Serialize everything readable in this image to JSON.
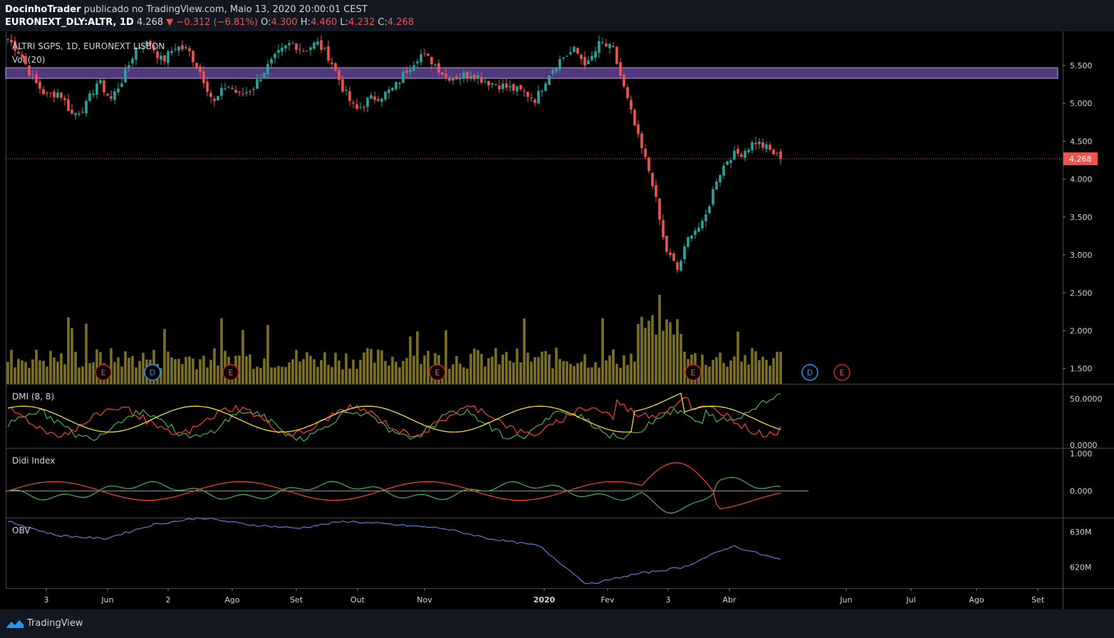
{
  "header": {
    "author": "DocinhoTrader",
    "published_text": "publicado no TradingView.com, Maio 13, 2020 20:00:01 CEST",
    "symbol_line": "EURONEXT_DLY:ALTR, 1D",
    "last": "4.268",
    "change": "▼ −0.312 (−6.81%)",
    "o_label": "O:",
    "o": "4.300",
    "h_label": "H:",
    "h": "4.460",
    "l_label": "L:",
    "l": "4.232",
    "c_label": "C:",
    "c": "4.268"
  },
  "panes": {
    "main_title": "ALTRI SGPS, 1D, EURONEXT LISBON",
    "vol_title": "Vol (20)",
    "dmi_title": "DMI (8, 8)",
    "didi_title": "Didi Index",
    "obv_title": "OBV"
  },
  "price_axis": {
    "ticks": [
      "5.500",
      "5.000",
      "4.500",
      "4.000",
      "3.500",
      "3.000",
      "2.500",
      "2.000",
      "1.500"
    ],
    "last_price_tag": "4.268"
  },
  "dmi_axis": [
    "50.0000",
    "0.0000"
  ],
  "didi_axis": [
    "1.000",
    "0.000"
  ],
  "obv_axis": [
    "630M",
    "620M"
  ],
  "time_axis": [
    "3",
    "Jun",
    "2",
    "Ago",
    "Set",
    "Out",
    "Nov",
    "2020",
    "Fev",
    "3",
    "Abr",
    "Jun",
    "Jul",
    "Ago",
    "Set"
  ],
  "events": [
    "E",
    "D",
    "E",
    "E",
    "E",
    "D",
    "E"
  ],
  "footer": {
    "brand": "TradingView"
  },
  "colors": {
    "up": "#26a69a",
    "down": "#ef5350",
    "volume": "#7b7121",
    "zone": "#7e57c2",
    "dmi_plus": "#4caf50",
    "dmi_minus": "#f44336",
    "adx": "#ffeb3b",
    "obv": "#5b7bd5"
  },
  "chart_data": {
    "type": "candlestick",
    "title": "ALTRI SGPS, 1D, EURONEXT LISBON",
    "ylim": [
      1.3,
      5.95
    ],
    "resistance_zone": [
      5.33,
      5.47
    ],
    "last_price": 4.268,
    "ohlc_last": {
      "open": 4.3,
      "high": 4.46,
      "low": 4.232,
      "close": 4.268
    },
    "close_path": [
      5.85,
      5.65,
      5.3,
      5.1,
      5.15,
      4.85,
      4.95,
      5.3,
      5.05,
      5.35,
      5.75,
      5.8,
      5.55,
      5.75,
      5.7,
      5.4,
      5.0,
      5.25,
      5.1,
      5.2,
      5.45,
      5.65,
      5.8,
      5.7,
      5.8,
      5.6,
      5.2,
      4.9,
      5.05,
      5.1,
      5.2,
      5.45,
      5.65,
      5.55,
      5.35,
      5.35,
      5.4,
      5.3,
      5.25,
      5.2,
      5.15,
      5.05,
      5.4,
      5.6,
      5.7,
      5.5,
      5.8,
      5.7,
      5.1,
      4.5,
      4.0,
      3.1,
      2.8,
      3.3,
      3.4,
      4.0,
      4.3,
      4.35,
      4.5,
      4.4,
      4.268
    ],
    "volume_range": [
      0,
      2.45
    ],
    "dmi": {
      "plus_di": [
        12,
        35,
        20,
        40,
        25
      ],
      "minus_di": [
        40,
        20,
        45,
        25,
        20
      ],
      "adx": [
        30,
        45,
        20,
        50,
        35
      ]
    },
    "didi_range": [
      -0.6,
      1.0
    ],
    "obv_range": [
      614,
      634
    ],
    "obv_unit": "M"
  }
}
